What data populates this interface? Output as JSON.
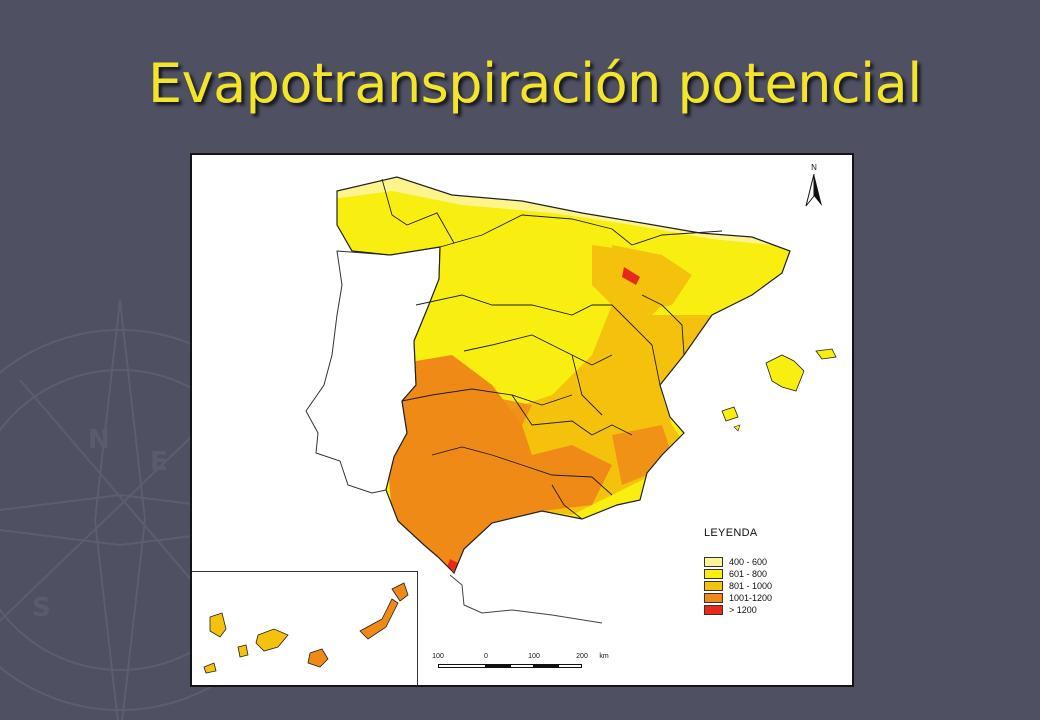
{
  "slide": {
    "title": "Evapotranspiración potencial"
  },
  "map": {
    "legend": {
      "title": "LEYENDA",
      "classes": [
        {
          "label": "400 - 600",
          "color": "#fdf59a"
        },
        {
          "label": "601 - 800",
          "color": "#f8ee10"
        },
        {
          "label": "801 - 1000",
          "color": "#f4c20d"
        },
        {
          "label": "1001-1200",
          "color": "#ef8a17"
        },
        {
          "label": "> 1200",
          "color": "#e8281c"
        }
      ]
    },
    "scale_bar": {
      "labels": [
        "100",
        "0",
        "100",
        "200"
      ],
      "unit": "km"
    },
    "north_arrow": {
      "label": "N"
    },
    "colors": {
      "portugal_fill": "#ffffff",
      "boundary": "#222222",
      "background": "#4f5163",
      "title": "#f2e52a"
    }
  }
}
